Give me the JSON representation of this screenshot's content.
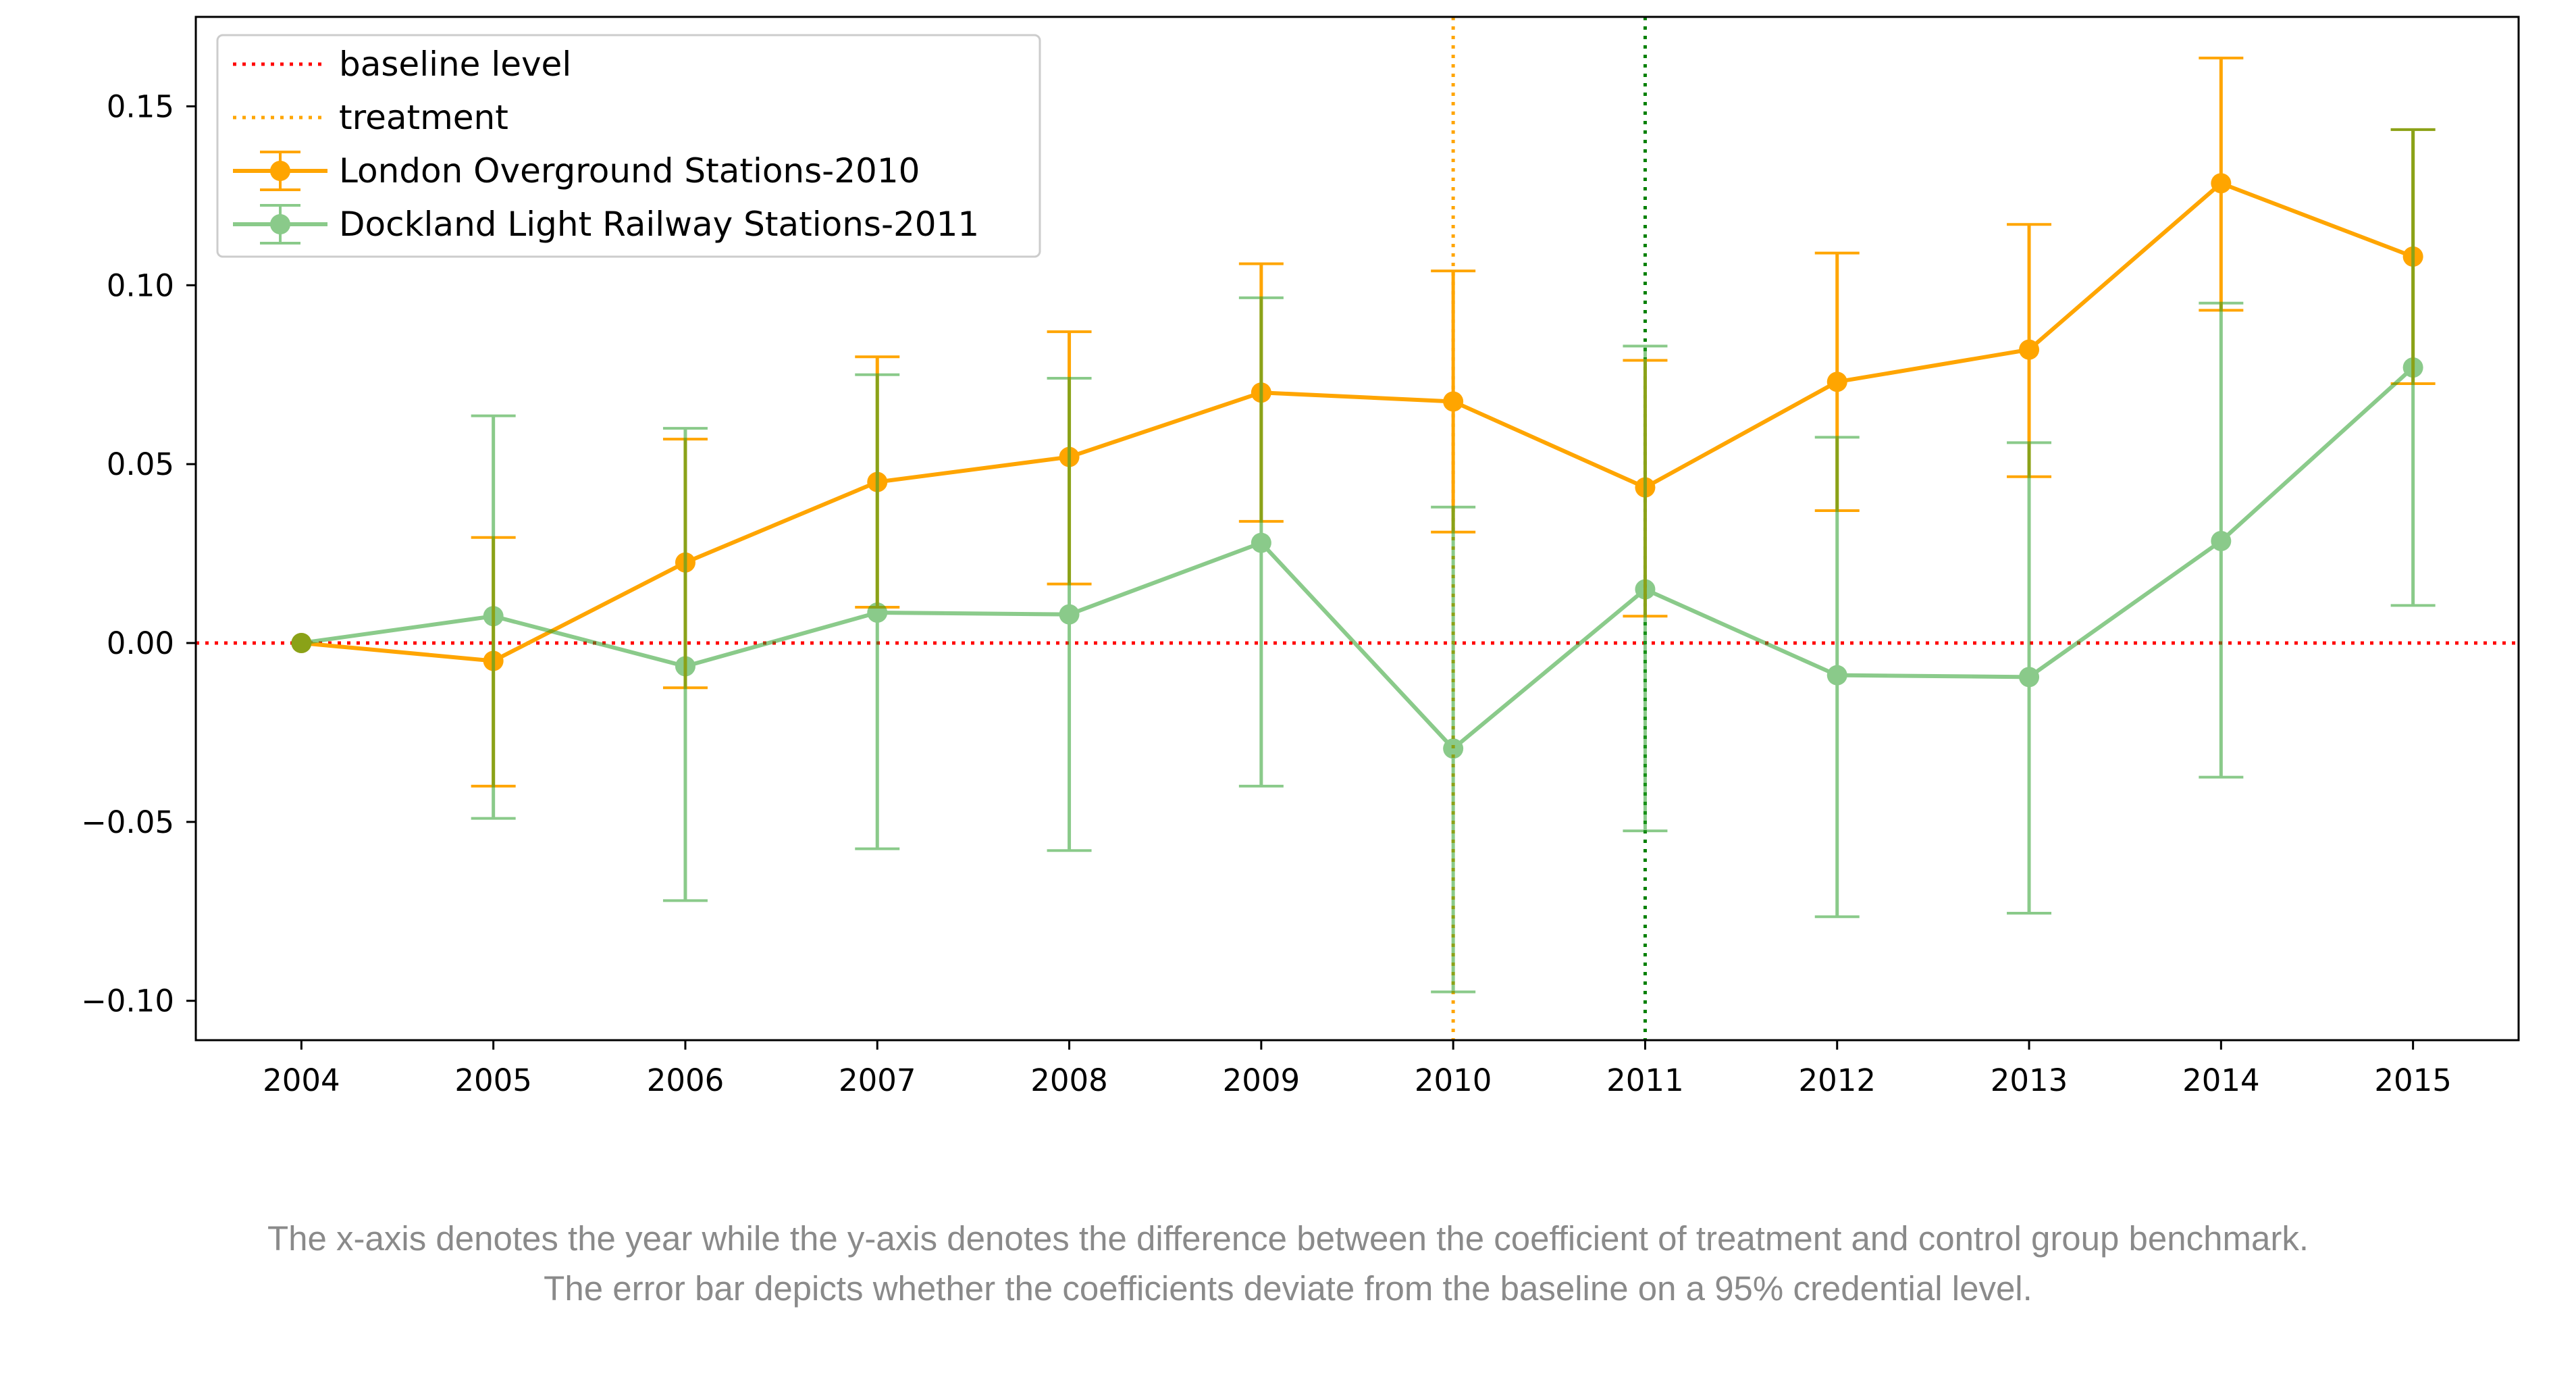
{
  "chart_data": {
    "type": "line",
    "x": [
      2004,
      2005,
      2006,
      2007,
      2008,
      2009,
      2010,
      2011,
      2012,
      2013,
      2014,
      2015
    ],
    "x_tick_labels": [
      "2004",
      "2005",
      "2006",
      "2007",
      "2008",
      "2009",
      "2010",
      "2011",
      "2012",
      "2013",
      "2014",
      "2015"
    ],
    "xlim": [
      2003.45,
      2015.55
    ],
    "ylim": [
      -0.111,
      0.175
    ],
    "y_ticks": [
      0.15,
      0.1,
      0.05,
      0.0,
      -0.05,
      -0.1
    ],
    "y_tick_labels": [
      "0.15",
      "0.10",
      "0.05",
      "0.00",
      "−0.05",
      "−0.10"
    ],
    "grid": false,
    "legend_position": "top-left",
    "series": [
      {
        "name": "London Overground Stations-2010",
        "color": "#ffa500",
        "values": [
          0.0,
          -0.005,
          0.0225,
          0.045,
          0.052,
          0.07,
          0.0675,
          0.0435,
          0.073,
          0.082,
          0.1285,
          0.108
        ],
        "lower": [
          0.0,
          -0.04,
          -0.0125,
          0.01,
          0.0165,
          0.034,
          0.031,
          0.0075,
          0.037,
          0.0465,
          0.093,
          0.0725
        ],
        "upper": [
          0.0,
          0.0295,
          0.057,
          0.08,
          0.087,
          0.106,
          0.104,
          0.079,
          0.109,
          0.117,
          0.1635,
          0.1435
        ]
      },
      {
        "name": "Dockland Light Railway Stations-2011",
        "color": "#2ca02c",
        "values": [
          0.0,
          0.0075,
          -0.0065,
          0.0085,
          0.008,
          0.028,
          -0.0295,
          0.015,
          -0.009,
          -0.0095,
          0.0285,
          0.077
        ],
        "lower": [
          0.0,
          -0.049,
          -0.072,
          -0.0575,
          -0.058,
          -0.04,
          -0.0975,
          -0.0525,
          -0.0765,
          -0.0755,
          -0.0375,
          0.0105
        ],
        "upper": [
          0.0,
          0.0635,
          0.06,
          0.075,
          0.074,
          0.0965,
          0.038,
          0.083,
          0.0575,
          0.056,
          0.095,
          0.1435
        ]
      }
    ],
    "reference_lines": [
      {
        "name": "baseline level",
        "orientation": "horizontal",
        "value": 0.0,
        "color": "#ff0000",
        "style": "dotted"
      },
      {
        "name": "treatment",
        "orientation": "vertical",
        "value": 2010,
        "color": "#ffa500",
        "style": "dotted"
      },
      {
        "orientation": "vertical",
        "value": 2011,
        "color": "#008000",
        "style": "dotted"
      }
    ],
    "legend": [
      "baseline level",
      "treatment",
      "London Overground Stations-2010",
      "Dockland Light Railway Stations-2011"
    ]
  },
  "caption": {
    "line1": "The x-axis denotes the year while the y-axis denotes the difference between the coefficient of treatment and control group benchmark.",
    "line2": "The error bar depicts whether the coefficients deviate from the baseline on a 95% credential level."
  }
}
